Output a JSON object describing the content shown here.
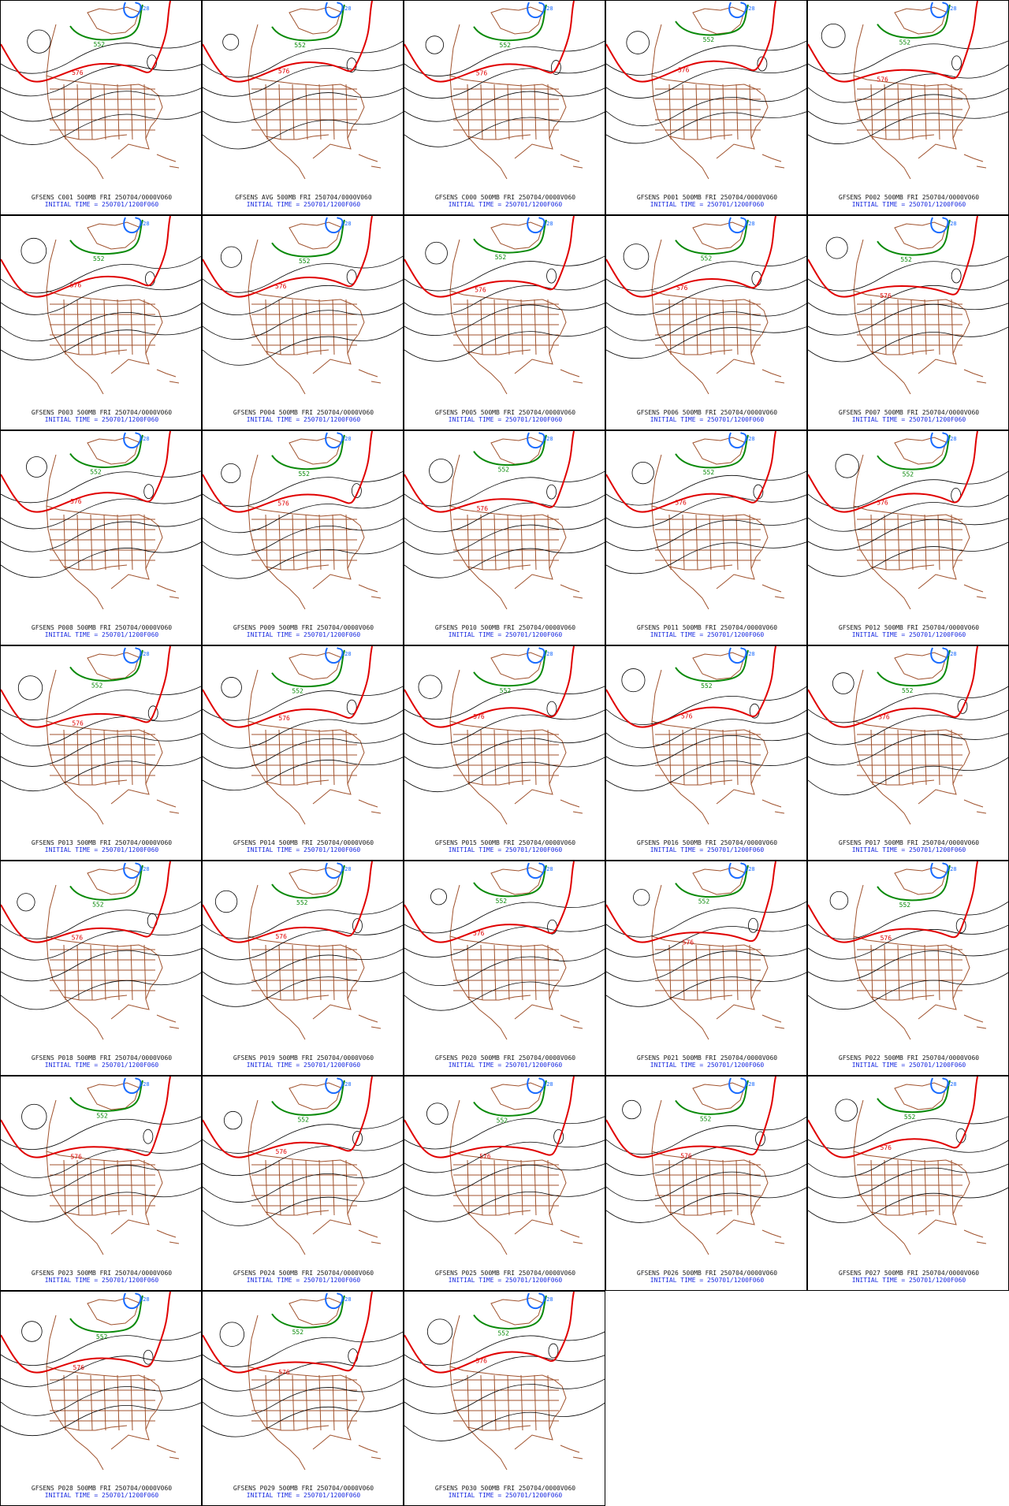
{
  "colors": {
    "contour": "#000000",
    "line_576": "#e00000",
    "line_552": "#0a8a0a",
    "line_528": "#1a6cff",
    "map_boundaries": "#a0522d",
    "caption_line1": "#1a1a1a",
    "caption_line2": "#1a2be0"
  },
  "contour_labels": {
    "red": "576",
    "green": "552",
    "blue": "528"
  },
  "panels": [
    {
      "caption": "GFSENS C001 500MB FRI 250704/0000V060",
      "init": "INITIAL TIME = 250701/1200F060"
    },
    {
      "caption": "GFSENS AVG 500MB FRI 250704/0000V060",
      "init": "INITIAL TIME = 250701/1200F060"
    },
    {
      "caption": "GFSENS C000 500MB FRI 250704/0000V060",
      "init": "INITIAL TIME = 250701/1200F060"
    },
    {
      "caption": "GFSENS P001 500MB FRI 250704/0000V060",
      "init": "INITIAL TIME = 250701/1200F060"
    },
    {
      "caption": "GFSENS P002 500MB FRI 250704/0000V060",
      "init": "INITIAL TIME = 250701/1200F060"
    },
    {
      "caption": "GFSENS P003 500MB FRI 250704/0000V060",
      "init": "INITIAL TIME = 250701/1200F060"
    },
    {
      "caption": "GFSENS P004 500MB FRI 250704/0000V060",
      "init": "INITIAL TIME = 250701/1200F060"
    },
    {
      "caption": "GFSENS P005 500MB FRI 250704/0000V060",
      "init": "INITIAL TIME = 250701/1200F060"
    },
    {
      "caption": "GFSENS P006 500MB FRI 250704/0000V060",
      "init": "INITIAL TIME = 250701/1200F060"
    },
    {
      "caption": "GFSENS P007 500MB FRI 250704/0000V060",
      "init": "INITIAL TIME = 250701/1200F060"
    },
    {
      "caption": "GFSENS P008 500MB FRI 250704/0000V060",
      "init": "INITIAL TIME = 250701/1200F060"
    },
    {
      "caption": "GFSENS P009 500MB FRI 250704/0000V060",
      "init": "INITIAL TIME = 250701/1200F060"
    },
    {
      "caption": "GFSENS P010 500MB FRI 250704/0000V060",
      "init": "INITIAL TIME = 250701/1200F060"
    },
    {
      "caption": "GFSENS P011 500MB FRI 250704/0000V060",
      "init": "INITIAL TIME = 250701/1200F060"
    },
    {
      "caption": "GFSENS P012 500MB FRI 250704/0000V060",
      "init": "INITIAL TIME = 250701/1200F060"
    },
    {
      "caption": "GFSENS P013 500MB FRI 250704/0000V060",
      "init": "INITIAL TIME = 250701/1200F060"
    },
    {
      "caption": "GFSENS P014 500MB FRI 250704/0000V060",
      "init": "INITIAL TIME = 250701/1200F060"
    },
    {
      "caption": "GFSENS P015 500MB FRI 250704/0000V060",
      "init": "INITIAL TIME = 250701/1200F060"
    },
    {
      "caption": "GFSENS P016 500MB FRI 250704/0000V060",
      "init": "INITIAL TIME = 250701/1200F060"
    },
    {
      "caption": "GFSENS P017 500MB FRI 250704/0000V060",
      "init": "INITIAL TIME = 250701/1200F060"
    },
    {
      "caption": "GFSENS P018 500MB FRI 250704/0000V060",
      "init": "INITIAL TIME = 250701/1200F060"
    },
    {
      "caption": "GFSENS P019 500MB FRI 250704/0000V060",
      "init": "INITIAL TIME = 250701/1200F060"
    },
    {
      "caption": "GFSENS P020 500MB FRI 250704/0000V060",
      "init": "INITIAL TIME = 250701/1200F060"
    },
    {
      "caption": "GFSENS P021 500MB FRI 250704/0000V060",
      "init": "INITIAL TIME = 250701/1200F060"
    },
    {
      "caption": "GFSENS P022 500MB FRI 250704/0000V060",
      "init": "INITIAL TIME = 250701/1200F060"
    },
    {
      "caption": "GFSENS P023 500MB FRI 250704/0000V060",
      "init": "INITIAL TIME = 250701/1200F060"
    },
    {
      "caption": "GFSENS P024 500MB FRI 250704/0000V060",
      "init": "INITIAL TIME = 250701/1200F060"
    },
    {
      "caption": "GFSENS P025 500MB FRI 250704/0000V060",
      "init": "INITIAL TIME = 250701/1200F060"
    },
    {
      "caption": "GFSENS P026 500MB FRI 250704/0000V060",
      "init": "INITIAL TIME = 250701/1200F060"
    },
    {
      "caption": "GFSENS P027 500MB FRI 250704/0000V060",
      "init": "INITIAL TIME = 250701/1200F060"
    },
    {
      "caption": "GFSENS P028 500MB FRI 250704/0000V060",
      "init": "INITIAL TIME = 250701/1200F060"
    },
    {
      "caption": "GFSENS P029 500MB FRI 250704/0000V060",
      "init": "INITIAL TIME = 250701/1200F060"
    },
    {
      "caption": "GFSENS P030 500MB FRI 250704/0000V060",
      "init": "INITIAL TIME = 250701/1200F060"
    }
  ]
}
